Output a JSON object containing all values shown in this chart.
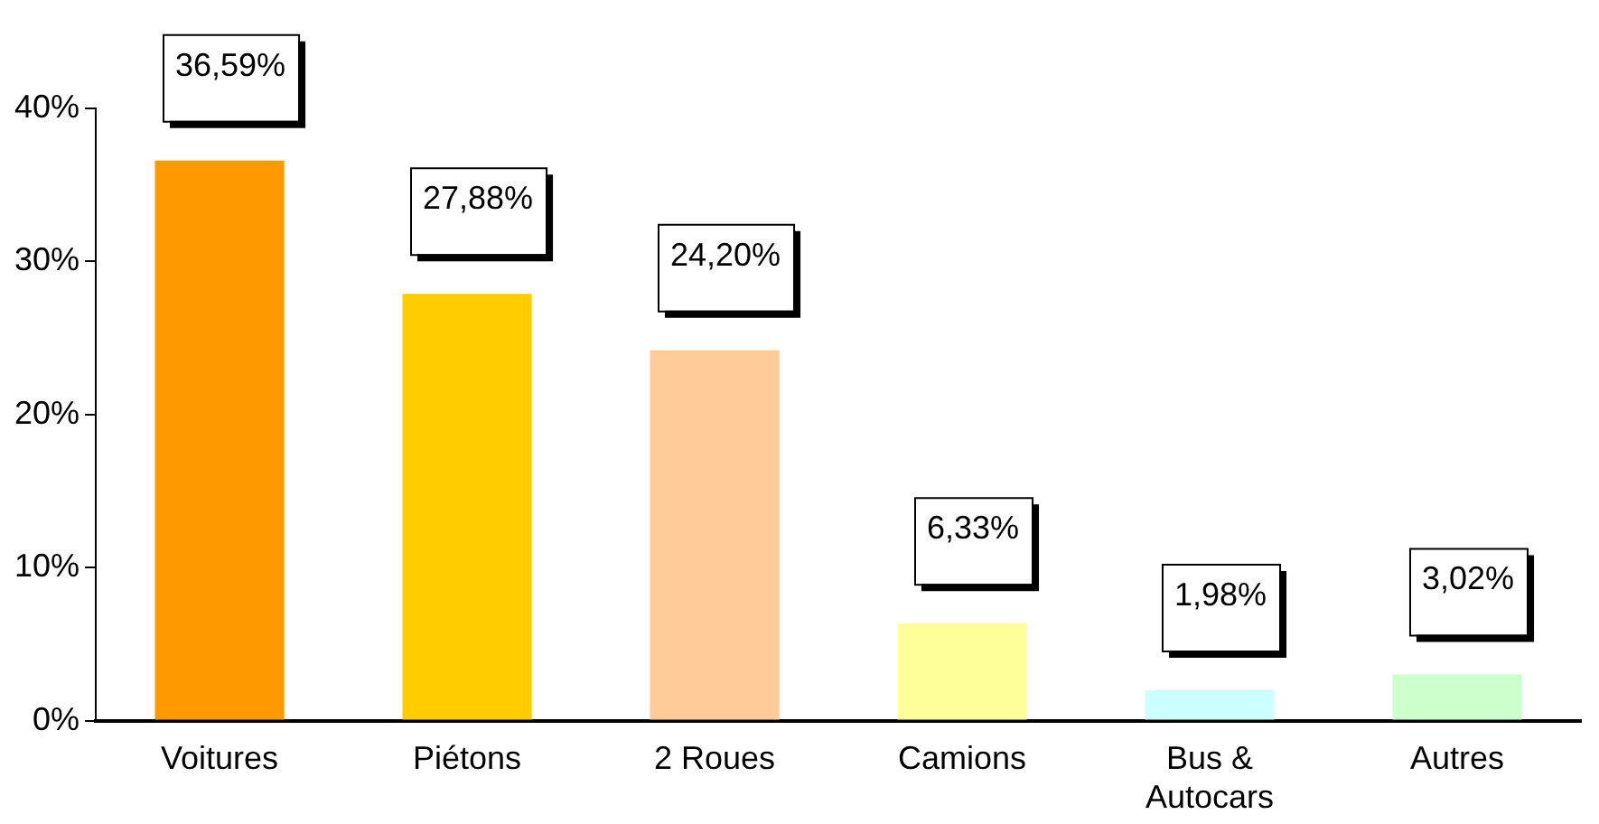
{
  "chart_data": {
    "type": "bar",
    "categories": [
      "Voitures",
      "Piétons",
      "2 Roues",
      "Camions",
      "Bus & Autocars",
      "Autres"
    ],
    "values": [
      36.59,
      27.88,
      24.2,
      6.33,
      1.98,
      3.02
    ],
    "colors": [
      "#ff9900",
      "#ffcc00",
      "#ffcc99",
      "#ffff99",
      "#ccffff",
      "#ccffcc"
    ],
    "value_labels": [
      "36,59%",
      "27,88%",
      "24,20%",
      "6,33%",
      "1,98%",
      "3,02%"
    ],
    "ylim": [
      0,
      40
    ],
    "yticks": [
      {
        "value": 0,
        "label": "0%"
      },
      {
        "value": 10,
        "label": "10%"
      },
      {
        "value": 20,
        "label": "20%"
      },
      {
        "value": 30,
        "label": "30%"
      },
      {
        "value": 40,
        "label": "40%"
      }
    ],
    "grid": false,
    "legend": false
  }
}
